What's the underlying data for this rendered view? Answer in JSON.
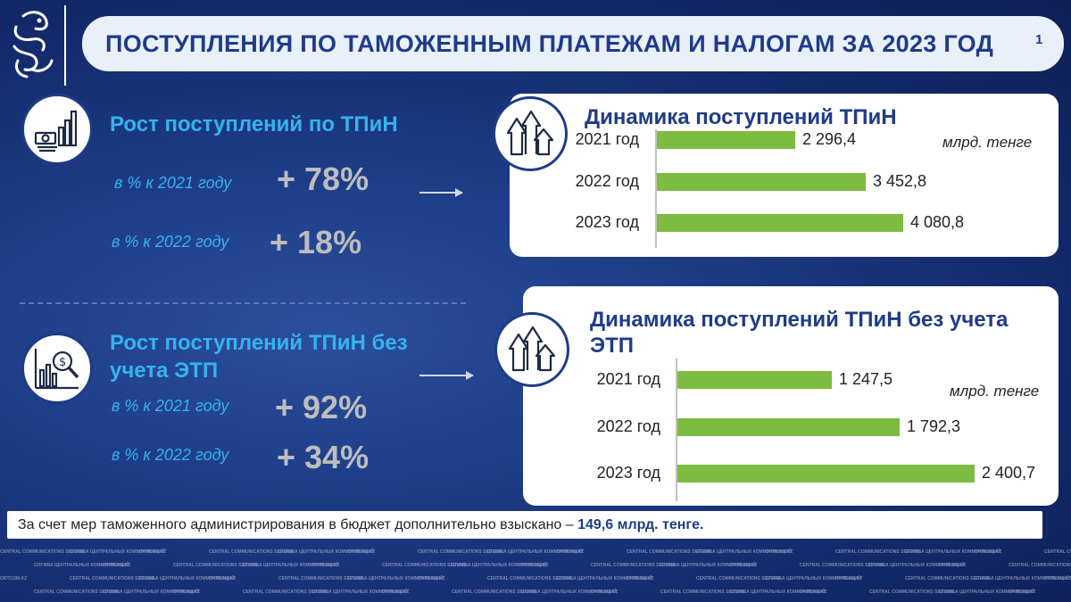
{
  "header": {
    "title": "ПОСТУПЛЕНИЯ ПО ТАМОЖЕННЫМ ПЛАТЕЖАМ И НАЛОГАМ ЗА 2023 ГОД",
    "page_number": "1"
  },
  "section1": {
    "title": "Рост поступлений по ТПиН",
    "rows": [
      {
        "label": "в % к 2021 году",
        "value": "+ 78%"
      },
      {
        "label": "в % к 2022 году",
        "value": "+ 18%"
      }
    ]
  },
  "section2": {
    "title": "Рост поступлений ТПиН без учета ЭТП",
    "rows": [
      {
        "label": "в % к 2021 году",
        "value": "+ 92%"
      },
      {
        "label": "в % к 2022 году",
        "value": "+ 34%"
      }
    ]
  },
  "chart_data": [
    {
      "type": "bar",
      "title": "Динамика поступлений ТПиН",
      "unit": "млрд. тенге",
      "categories": [
        "2021 год",
        "2022 год",
        "2023 год"
      ],
      "values": [
        2296.4,
        3452.8,
        4080.8
      ],
      "value_labels": [
        "2 296,4",
        "3 452,8",
        "4 080,8"
      ],
      "xlim": [
        0,
        4080.8
      ],
      "color": "#7cbc40"
    },
    {
      "type": "bar",
      "title": "Динамика поступлений ТПиН без учета ЭТП",
      "unit": "млрд. тенге",
      "categories": [
        "2021 год",
        "2022 год",
        "2023 год"
      ],
      "values": [
        1247.5,
        1792.3,
        2400.7
      ],
      "value_labels": [
        "1 247,5",
        "1 792,3",
        "2 400,7"
      ],
      "xlim": [
        0,
        2400.7
      ],
      "color": "#7cbc40"
    }
  ],
  "footer": {
    "text": "За счет мер таможенного администрирования в бюджет дополнительно взыскано –",
    "highlight": "149,6 млрд. тенге."
  },
  "watermark": {
    "lines": [
      "CENTRAL COMMUNICATIONS SERVICE",
      "СЛУЖБА ЦЕНТРАЛЬНЫХ КОММУНИКАЦИЙ",
      "ORTCOM.KZ"
    ]
  },
  "colors": {
    "background": "#1d3c86",
    "accent_blue": "#35b3ee",
    "title_navy": "#1f3b8a",
    "percent_gray": "#bdbdbd",
    "bar_green": "#7cbc40"
  },
  "icons": [
    "snow-leopard-logo",
    "bar-chart-money-icon",
    "rising-arrows-icon",
    "magnifier-chart-icon"
  ]
}
